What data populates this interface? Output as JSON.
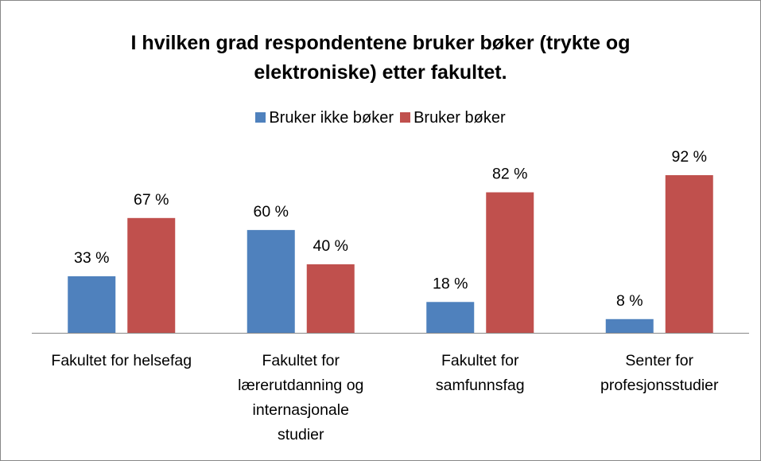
{
  "chart_data": {
    "type": "bar",
    "title": "I hvilken grad respondentene bruker bøker (trykte og elektroniske) etter fakultet.",
    "categories": [
      "Fakultet for helsefag",
      "Fakultet for\nlærerutdanning og\ninternasjonale\nstudier",
      "Fakultet for\nsamfunnsfag",
      "Senter for\nprofesjonsstudier"
    ],
    "series": [
      {
        "name": "Bruker ikke bøker",
        "color": "#4f81bd",
        "values": [
          33,
          60,
          18,
          8
        ],
        "value_labels": [
          "33 %",
          "60 %",
          "18 %",
          "8 %"
        ]
      },
      {
        "name": "Bruker bøker",
        "color": "#c0504d",
        "values": [
          67,
          40,
          82,
          92
        ],
        "value_labels": [
          "67 %",
          "40 %",
          "82 %",
          "92 %"
        ]
      }
    ],
    "legend": "top"
  }
}
